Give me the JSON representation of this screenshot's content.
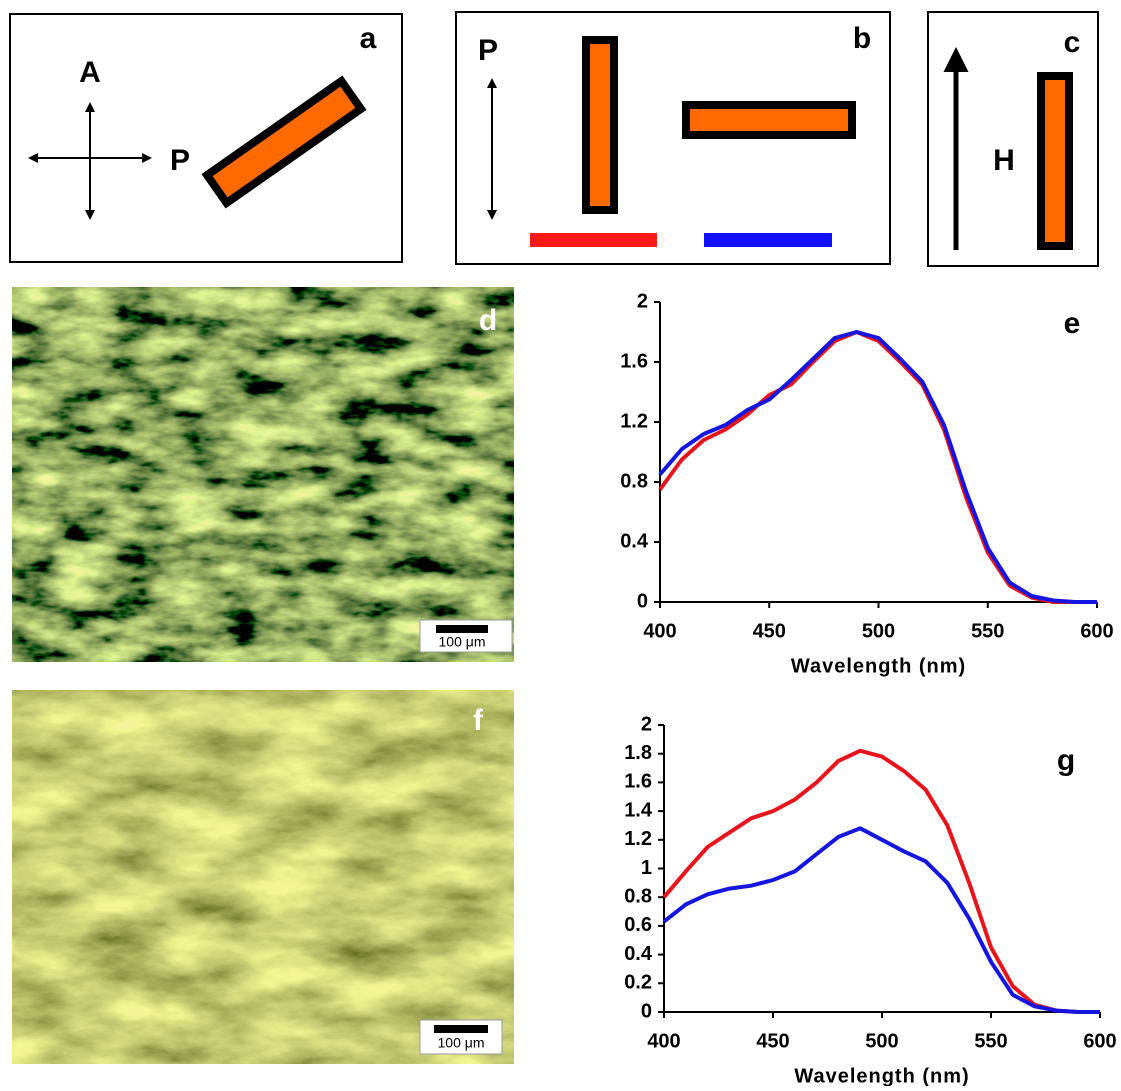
{
  "panels": {
    "a": {
      "label": "a",
      "analyzer": "A",
      "polarizer": "P"
    },
    "b": {
      "label": "b",
      "polarizer": "P"
    },
    "c": {
      "label": "c",
      "field": "H"
    },
    "d": {
      "label": "d",
      "scale_bar": "100 μm"
    },
    "f": {
      "label": "f",
      "scale_bar": "100 μm"
    }
  },
  "chart_data": [
    {
      "type": "line",
      "label": "e",
      "x_label": "Wavelength (nm)",
      "x": [
        400,
        410,
        420,
        430,
        440,
        450,
        460,
        470,
        480,
        490,
        500,
        510,
        520,
        530,
        540,
        550,
        560,
        570,
        580,
        590,
        600
      ],
      "series": [
        {
          "color": "#e8141c",
          "values": [
            0.75,
            0.95,
            1.08,
            1.15,
            1.25,
            1.38,
            1.45,
            1.6,
            1.74,
            1.8,
            1.74,
            1.6,
            1.45,
            1.15,
            0.7,
            0.33,
            0.11,
            0.03,
            0,
            0,
            0
          ]
        },
        {
          "color": "#1515e0",
          "values": [
            0.85,
            1.02,
            1.12,
            1.18,
            1.28,
            1.35,
            1.48,
            1.62,
            1.76,
            1.8,
            1.76,
            1.62,
            1.47,
            1.18,
            0.74,
            0.36,
            0.13,
            0.04,
            0.01,
            0,
            0
          ]
        }
      ],
      "xlim": [
        400,
        600
      ],
      "xticks": [
        400,
        450,
        500,
        550,
        600
      ],
      "ylim": [
        0,
        2
      ],
      "yticks": [
        0,
        0.4,
        0.8,
        1.2,
        1.6,
        2
      ]
    },
    {
      "type": "line",
      "label": "g",
      "x_label": "Wavelength (nm)",
      "x": [
        400,
        410,
        420,
        430,
        440,
        450,
        460,
        470,
        480,
        490,
        500,
        510,
        520,
        530,
        540,
        550,
        560,
        570,
        580,
        590,
        600
      ],
      "series": [
        {
          "color": "#e8141c",
          "values": [
            0.8,
            0.98,
            1.15,
            1.25,
            1.35,
            1.4,
            1.48,
            1.6,
            1.75,
            1.82,
            1.78,
            1.68,
            1.55,
            1.3,
            0.9,
            0.45,
            0.18,
            0.05,
            0.01,
            0,
            0
          ]
        },
        {
          "color": "#1515e0",
          "values": [
            0.63,
            0.75,
            0.82,
            0.86,
            0.88,
            0.92,
            0.98,
            1.1,
            1.22,
            1.28,
            1.2,
            1.12,
            1.05,
            0.9,
            0.65,
            0.35,
            0.12,
            0.04,
            0.01,
            0,
            0
          ]
        }
      ],
      "xlim": [
        400,
        600
      ],
      "xticks": [
        400,
        450,
        500,
        550,
        600
      ],
      "ylim": [
        0,
        2
      ],
      "yticks": [
        0,
        0.2,
        0.4,
        0.6,
        0.8,
        1,
        1.2,
        1.4,
        1.6,
        1.8,
        2
      ]
    }
  ]
}
